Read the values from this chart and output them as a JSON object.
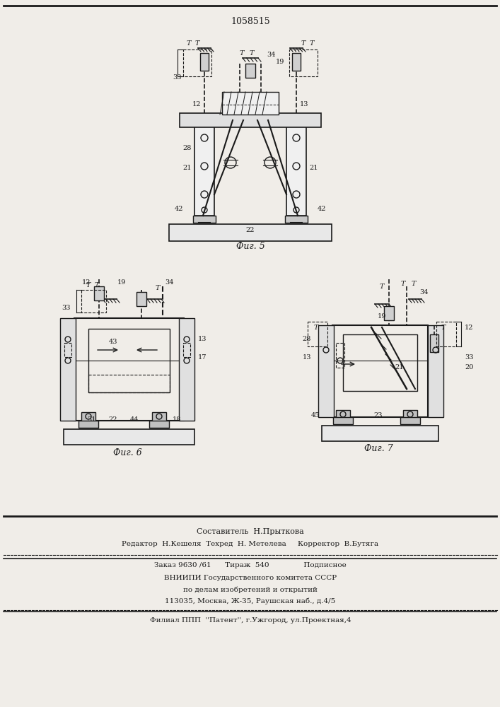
{
  "patent_number": "1058515",
  "bg": "#f0ede8",
  "lc": "#1a1a1a",
  "fig5_caption": "Фиг. 5",
  "fig6_caption": "Фиг. 6",
  "fig7_caption": "Фиг. 7",
  "f1": "Составитель  Н.Прыткова",
  "f2": "Редактор  Н.Кешеля  Техред  Н. Метелева     Корректор  В.Бутяга",
  "f3": "Заказ 9630 /61      Тираж  540               Подписное",
  "f4": "ВНИИПИ Государственного комитета СССР",
  "f5": "по делам изобретений и открытий",
  "f6": "113035, Москва, Ж-35, Раушская наб., д.4/5",
  "f7": "Филиал ППП  ''Патент'', г.Ужгород, ул.Проектная,4"
}
